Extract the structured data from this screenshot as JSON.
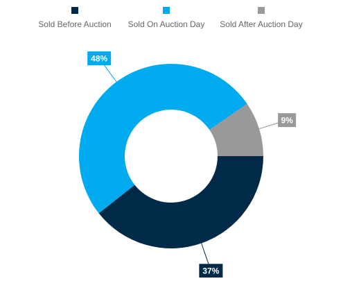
{
  "chart_data": {
    "type": "donut",
    "categories": [
      "Sold Before Auction",
      "Sold On Auction Day",
      "Sold After Auction Day"
    ],
    "values": [
      37,
      48,
      9
    ],
    "value_labels": [
      "37%",
      "48%",
      "9%"
    ],
    "colors": [
      "#002a47",
      "#00aaee",
      "#999999"
    ],
    "legend": "top"
  }
}
